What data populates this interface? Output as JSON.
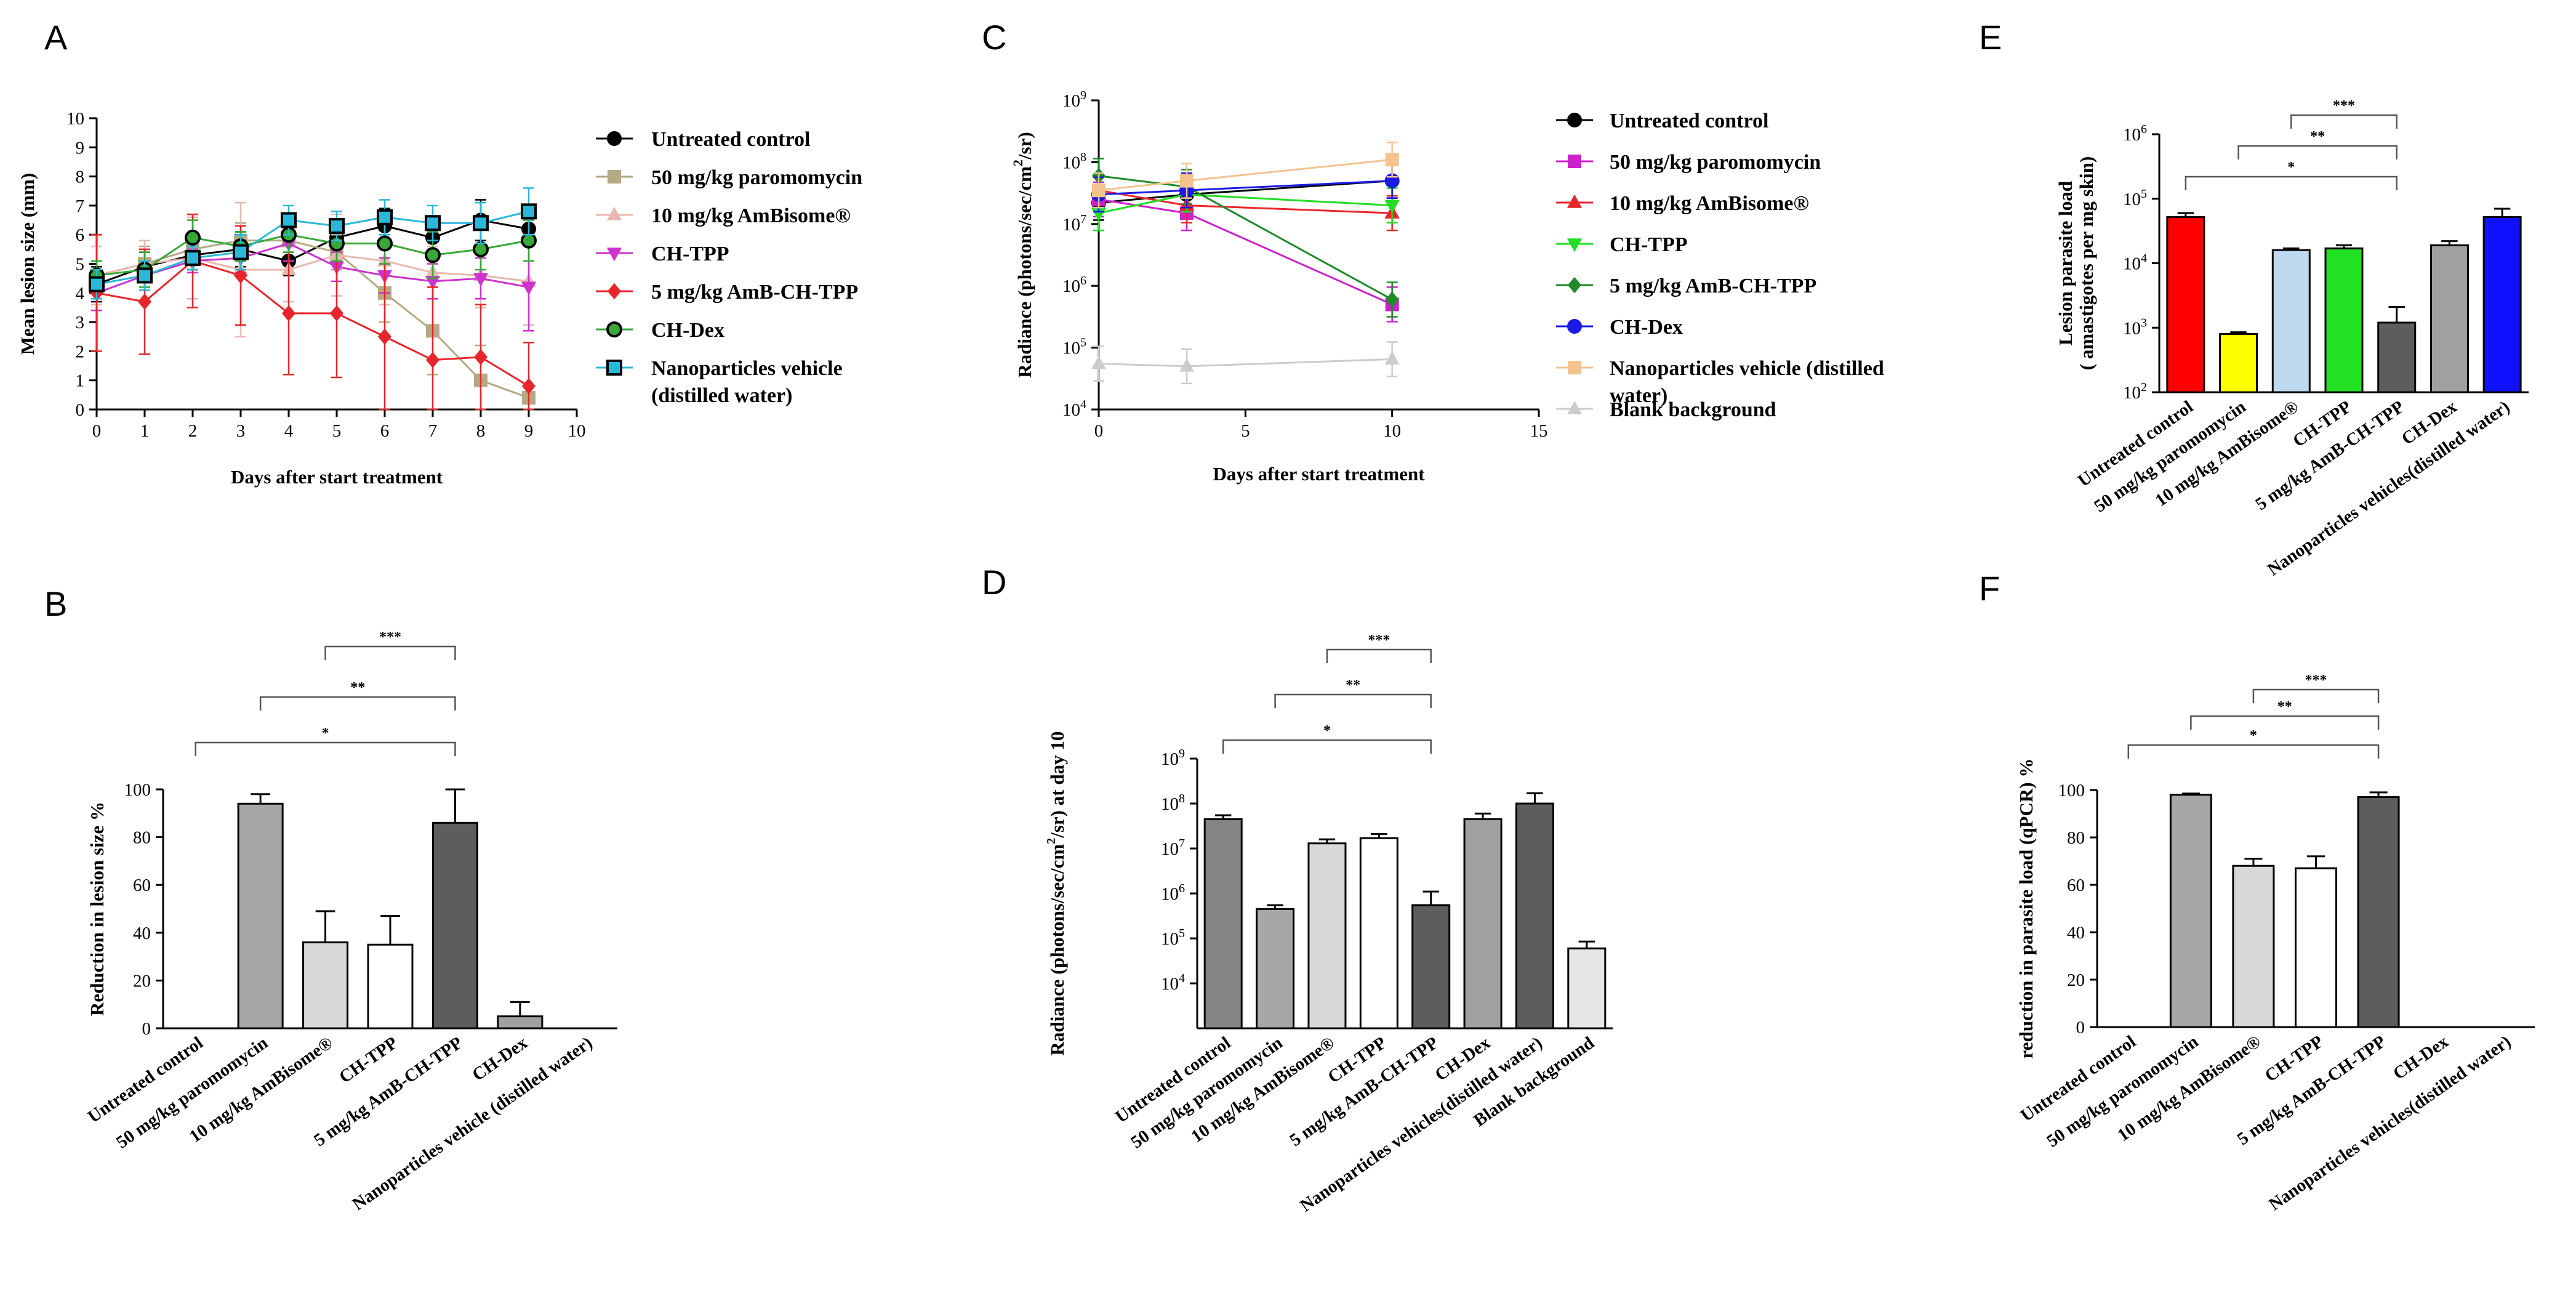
{
  "chart_data": [
    {
      "panel": "A",
      "type": "line",
      "xlabel": "Days after start treatment",
      "ylabel": "Mean lesion size (mm)",
      "xlim": [
        0,
        10
      ],
      "ylim": [
        0,
        10
      ],
      "xticks": [
        "0",
        "1",
        "2",
        "3",
        "4",
        "5",
        "6",
        "7",
        "8",
        "9",
        "10"
      ],
      "yticks": [
        "0",
        "1",
        "2",
        "3",
        "4",
        "5",
        "6",
        "7",
        "8",
        "9",
        "10"
      ],
      "x": [
        0,
        1,
        2,
        3,
        4,
        5,
        6,
        7,
        8,
        9
      ],
      "series": [
        {
          "name": "Untreated control",
          "color": "#000000",
          "marker": "circle",
          "values": [
            4.3,
            4.9,
            5.3,
            5.5,
            5.1,
            5.9,
            6.3,
            5.9,
            6.5,
            6.2
          ],
          "errors": [
            0.6,
            0.5,
            0.5,
            0.6,
            0.5,
            0.6,
            0.6,
            0.6,
            0.7,
            0.5
          ]
        },
        {
          "name": "50 mg/kg paromomycin",
          "color": "#b3aa83",
          "marker": "square",
          "values": [
            4.6,
            5.0,
            5.5,
            5.8,
            5.8,
            5.4,
            4.0,
            2.7,
            1.0,
            0.4
          ],
          "errors": [
            0.5,
            0.6,
            0.5,
            0.6,
            0.7,
            0.6,
            1.0,
            1.5,
            1.2,
            0.4
          ]
        },
        {
          "name": "10 mg/kg AmBisome®",
          "color": "#e8b8ae",
          "marker": "triangle",
          "values": [
            4.6,
            5.0,
            5.2,
            4.8,
            4.8,
            5.3,
            5.1,
            4.7,
            4.6,
            4.4
          ],
          "errors": [
            1.0,
            0.8,
            1.4,
            2.3,
            1.1,
            1.4,
            1.5,
            0.9,
            1.1,
            1.5
          ]
        },
        {
          "name": "CH-TPP",
          "color": "#cc33cc",
          "marker": "triangle-down",
          "values": [
            4.0,
            4.6,
            5.1,
            5.2,
            5.7,
            4.9,
            4.6,
            4.4,
            4.5,
            4.2
          ],
          "errors": [
            0.6,
            0.5,
            0.4,
            0.5,
            0.6,
            0.5,
            0.6,
            0.6,
            0.7,
            1.5
          ]
        },
        {
          "name": "5 mg/kg AmB-CH-TPP",
          "color": "#e8252b",
          "marker": "diamond",
          "values": [
            4.0,
            3.7,
            5.1,
            4.6,
            3.3,
            3.3,
            2.5,
            1.7,
            1.8,
            0.8
          ],
          "errors": [
            2.0,
            1.8,
            1.6,
            1.7,
            2.1,
            2.2,
            2.5,
            2.5,
            1.8,
            1.5
          ]
        },
        {
          "name": "CH-Dex",
          "color": "#38a838",
          "marker": "circle-open",
          "values": [
            4.6,
            4.8,
            5.9,
            5.6,
            6.0,
            5.7,
            5.7,
            5.3,
            5.5,
            5.8
          ],
          "errors": [
            0.5,
            0.6,
            0.6,
            0.5,
            0.6,
            0.6,
            0.7,
            0.8,
            0.7,
            0.7
          ]
        },
        {
          "name": "Nanoparticles vehicle (distilled water)",
          "legend_lines": [
            "Nanoparticles vehicle",
            "(distilled water)"
          ],
          "color": "#2ab8d8",
          "marker": "square-open",
          "values": [
            4.3,
            4.6,
            5.2,
            5.4,
            6.5,
            6.3,
            6.6,
            6.4,
            6.4,
            6.8
          ],
          "errors": [
            0.5,
            0.5,
            0.4,
            0.6,
            0.5,
            0.5,
            0.6,
            0.6,
            0.7,
            0.8
          ]
        }
      ]
    },
    {
      "panel": "B",
      "type": "bar",
      "ylabel": "Reduction in lesion size %",
      "ylim": [
        0,
        100
      ],
      "yticks": [
        "0",
        "20",
        "40",
        "60",
        "80",
        "100"
      ],
      "categories": [
        "Untreated control",
        "50 mg/kg paromomycin",
        "10 mg/kg AmBisome®",
        "CH-TPP",
        "5 mg/kg AmB-CH-TPP",
        "CH-Dex",
        "Nanoparticles vehicle (distilled water)"
      ],
      "values": [
        0,
        94,
        36,
        35,
        86,
        5,
        0
      ],
      "errors": [
        0,
        4,
        13,
        12,
        14,
        6,
        0
      ],
      "colors": [
        "#ffffff",
        "#a7a7a7",
        "#d8d8d8",
        "#ffffff",
        "#5d5d5d",
        "#a0a0a0",
        "#ffffff"
      ],
      "significance": [
        {
          "from": 2,
          "to": 4,
          "label": "***"
        },
        {
          "from": 1,
          "to": 4,
          "label": "**"
        },
        {
          "from": 0,
          "to": 4,
          "label": "*"
        }
      ]
    },
    {
      "panel": "C",
      "type": "line",
      "xlabel": "Days after start treatment",
      "ylabel_parts": [
        "Radiance (photons/sec/cm",
        "2",
        "/sr)"
      ],
      "yscale": "log",
      "xlim": [
        0,
        15
      ],
      "ylim": [
        10000,
        1000000000
      ],
      "xticks": [
        "0",
        "5",
        "10",
        "15"
      ],
      "yticks": [
        "10",
        "10",
        "10",
        "10",
        "10",
        "10"
      ],
      "ytick_exponents": [
        "4",
        "5",
        "6",
        "7",
        "8",
        "9"
      ],
      "x": [
        0,
        3,
        10
      ],
      "series": [
        {
          "name": "Untreated control",
          "color": "#000000",
          "marker": "circle",
          "values": [
            22000000,
            30000000,
            50000000
          ]
        },
        {
          "name": "50 mg/kg paromomycin",
          "color": "#cc22cc",
          "marker": "square",
          "values": [
            25000000,
            15000000,
            500000
          ]
        },
        {
          "name": "10 mg/kg AmBisome®",
          "color": "#e8252b",
          "marker": "triangle",
          "values": [
            35000000,
            20000000,
            15000000
          ]
        },
        {
          "name": "CH-TPP",
          "color": "#22dd22",
          "marker": "triangle-down",
          "values": [
            15000000,
            30000000,
            20000000
          ]
        },
        {
          "name": "5 mg/kg AmB-CH-TPP",
          "color": "#1e8a2a",
          "marker": "diamond",
          "values": [
            60000000,
            40000000,
            600000
          ]
        },
        {
          "name": "CH-Dex",
          "color": "#1a1ae6",
          "marker": "circle",
          "values": [
            30000000,
            35000000,
            50000000
          ]
        },
        {
          "name": "Nanoparticles vehicle (distilled water)",
          "legend_lines": [
            "Nanoparticles vehicle (distilled",
            "water)"
          ],
          "color": "#f5c38f",
          "marker": "square",
          "values": [
            35000000,
            50000000,
            110000000
          ]
        },
        {
          "name": "Blank background",
          "color": "#cccccc",
          "marker": "triangle",
          "values": [
            55000,
            50000,
            65000
          ]
        }
      ]
    },
    {
      "panel": "D",
      "type": "bar",
      "yscale": "log",
      "ylabel_parts": [
        "Radiance (photons/sec/cm",
        "2",
        "/sr) at day 10"
      ],
      "ylim": [
        1000,
        1000000000
      ],
      "yticks": [
        "10",
        "10",
        "10",
        "10",
        "10",
        "10"
      ],
      "ytick_exponents": [
        "4",
        "5",
        "6",
        "7",
        "8",
        "9"
      ],
      "categories": [
        "Untreated control",
        "50 mg/kg paromomycin",
        "10 mg/kg AmBisome®",
        "CH-TPP",
        "5 mg/kg AmB-CH-TPP",
        "CH-Dex",
        "Nanoparticles vehicles(distilled water)",
        "Blank background"
      ],
      "values": [
        45000000,
        450000,
        13000000,
        17000000,
        550000,
        45000000,
        100000000,
        60000
      ],
      "error_tops": [
        55000000,
        550000,
        16000000,
        21000000,
        1100000,
        60000000,
        170000000,
        85000
      ],
      "colors": [
        "#848484",
        "#a7a7a7",
        "#d8d8d8",
        "#ffffff",
        "#5d5d5d",
        "#a0a0a0",
        "#5d5d5d",
        "#e6e6e6"
      ],
      "significance": [
        {
          "from": 2,
          "to": 4,
          "label": "***"
        },
        {
          "from": 1,
          "to": 4,
          "label": "**"
        },
        {
          "from": 0,
          "to": 4,
          "label": "*"
        }
      ]
    },
    {
      "panel": "E",
      "type": "bar",
      "yscale": "log",
      "ylabel_lines": [
        "Lesion parasite load",
        "( amastigotes per mg skin)"
      ],
      "ylim": [
        100,
        1000000
      ],
      "yticks": [
        "10",
        "10",
        "10",
        "10",
        "10"
      ],
      "ytick_exponents": [
        "2",
        "3",
        "4",
        "5",
        "6"
      ],
      "categories": [
        "Untreated control",
        "50 mg/kg paromomycin",
        "10 mg/kg AmBisome®",
        "CH-TPP",
        "5 mg/kg AmB-CH-TPP",
        "CH-Dex",
        "Nanoparticles vehicles(distilled water)"
      ],
      "values": [
        52000,
        800,
        16000,
        17000,
        1200,
        19000,
        52000
      ],
      "error_tops": [
        60000,
        850,
        17000,
        19000,
        2100,
        22000,
        70000
      ],
      "colors": [
        "#ff0000",
        "#ffff00",
        "#bcd9f0",
        "#22e022",
        "#5d5d5d",
        "#a0a0a0",
        "#1010ff"
      ],
      "significance": [
        {
          "from": 2,
          "to": 4,
          "label": "***"
        },
        {
          "from": 1,
          "to": 4,
          "label": "**"
        },
        {
          "from": 0,
          "to": 4,
          "label": "*"
        }
      ]
    },
    {
      "panel": "F",
      "type": "bar",
      "ylabel": "reduction in parasite load (qPCR) %",
      "ylim": [
        0,
        100
      ],
      "yticks": [
        "0",
        "20",
        "40",
        "60",
        "80",
        "100"
      ],
      "categories": [
        "Untreated control",
        "50 mg/kg paromomycin",
        "10 mg/kg AmBisome®",
        "CH-TPP",
        "5 mg/kg AmB-CH-TPP",
        "CH-Dex",
        "Nanoparticles vehicles(distilled water)"
      ],
      "values": [
        0,
        98,
        68,
        67,
        97,
        0,
        0
      ],
      "errors": [
        0,
        0.5,
        3,
        5,
        2,
        0,
        0
      ],
      "colors": [
        "#ffffff",
        "#a7a7a7",
        "#d8d8d8",
        "#ffffff",
        "#5d5d5d",
        "#ffffff",
        "#ffffff"
      ],
      "significance": [
        {
          "from": 2,
          "to": 4,
          "label": "***"
        },
        {
          "from": 1,
          "to": 4,
          "label": "**"
        },
        {
          "from": 0,
          "to": 4,
          "label": "*"
        }
      ]
    }
  ]
}
